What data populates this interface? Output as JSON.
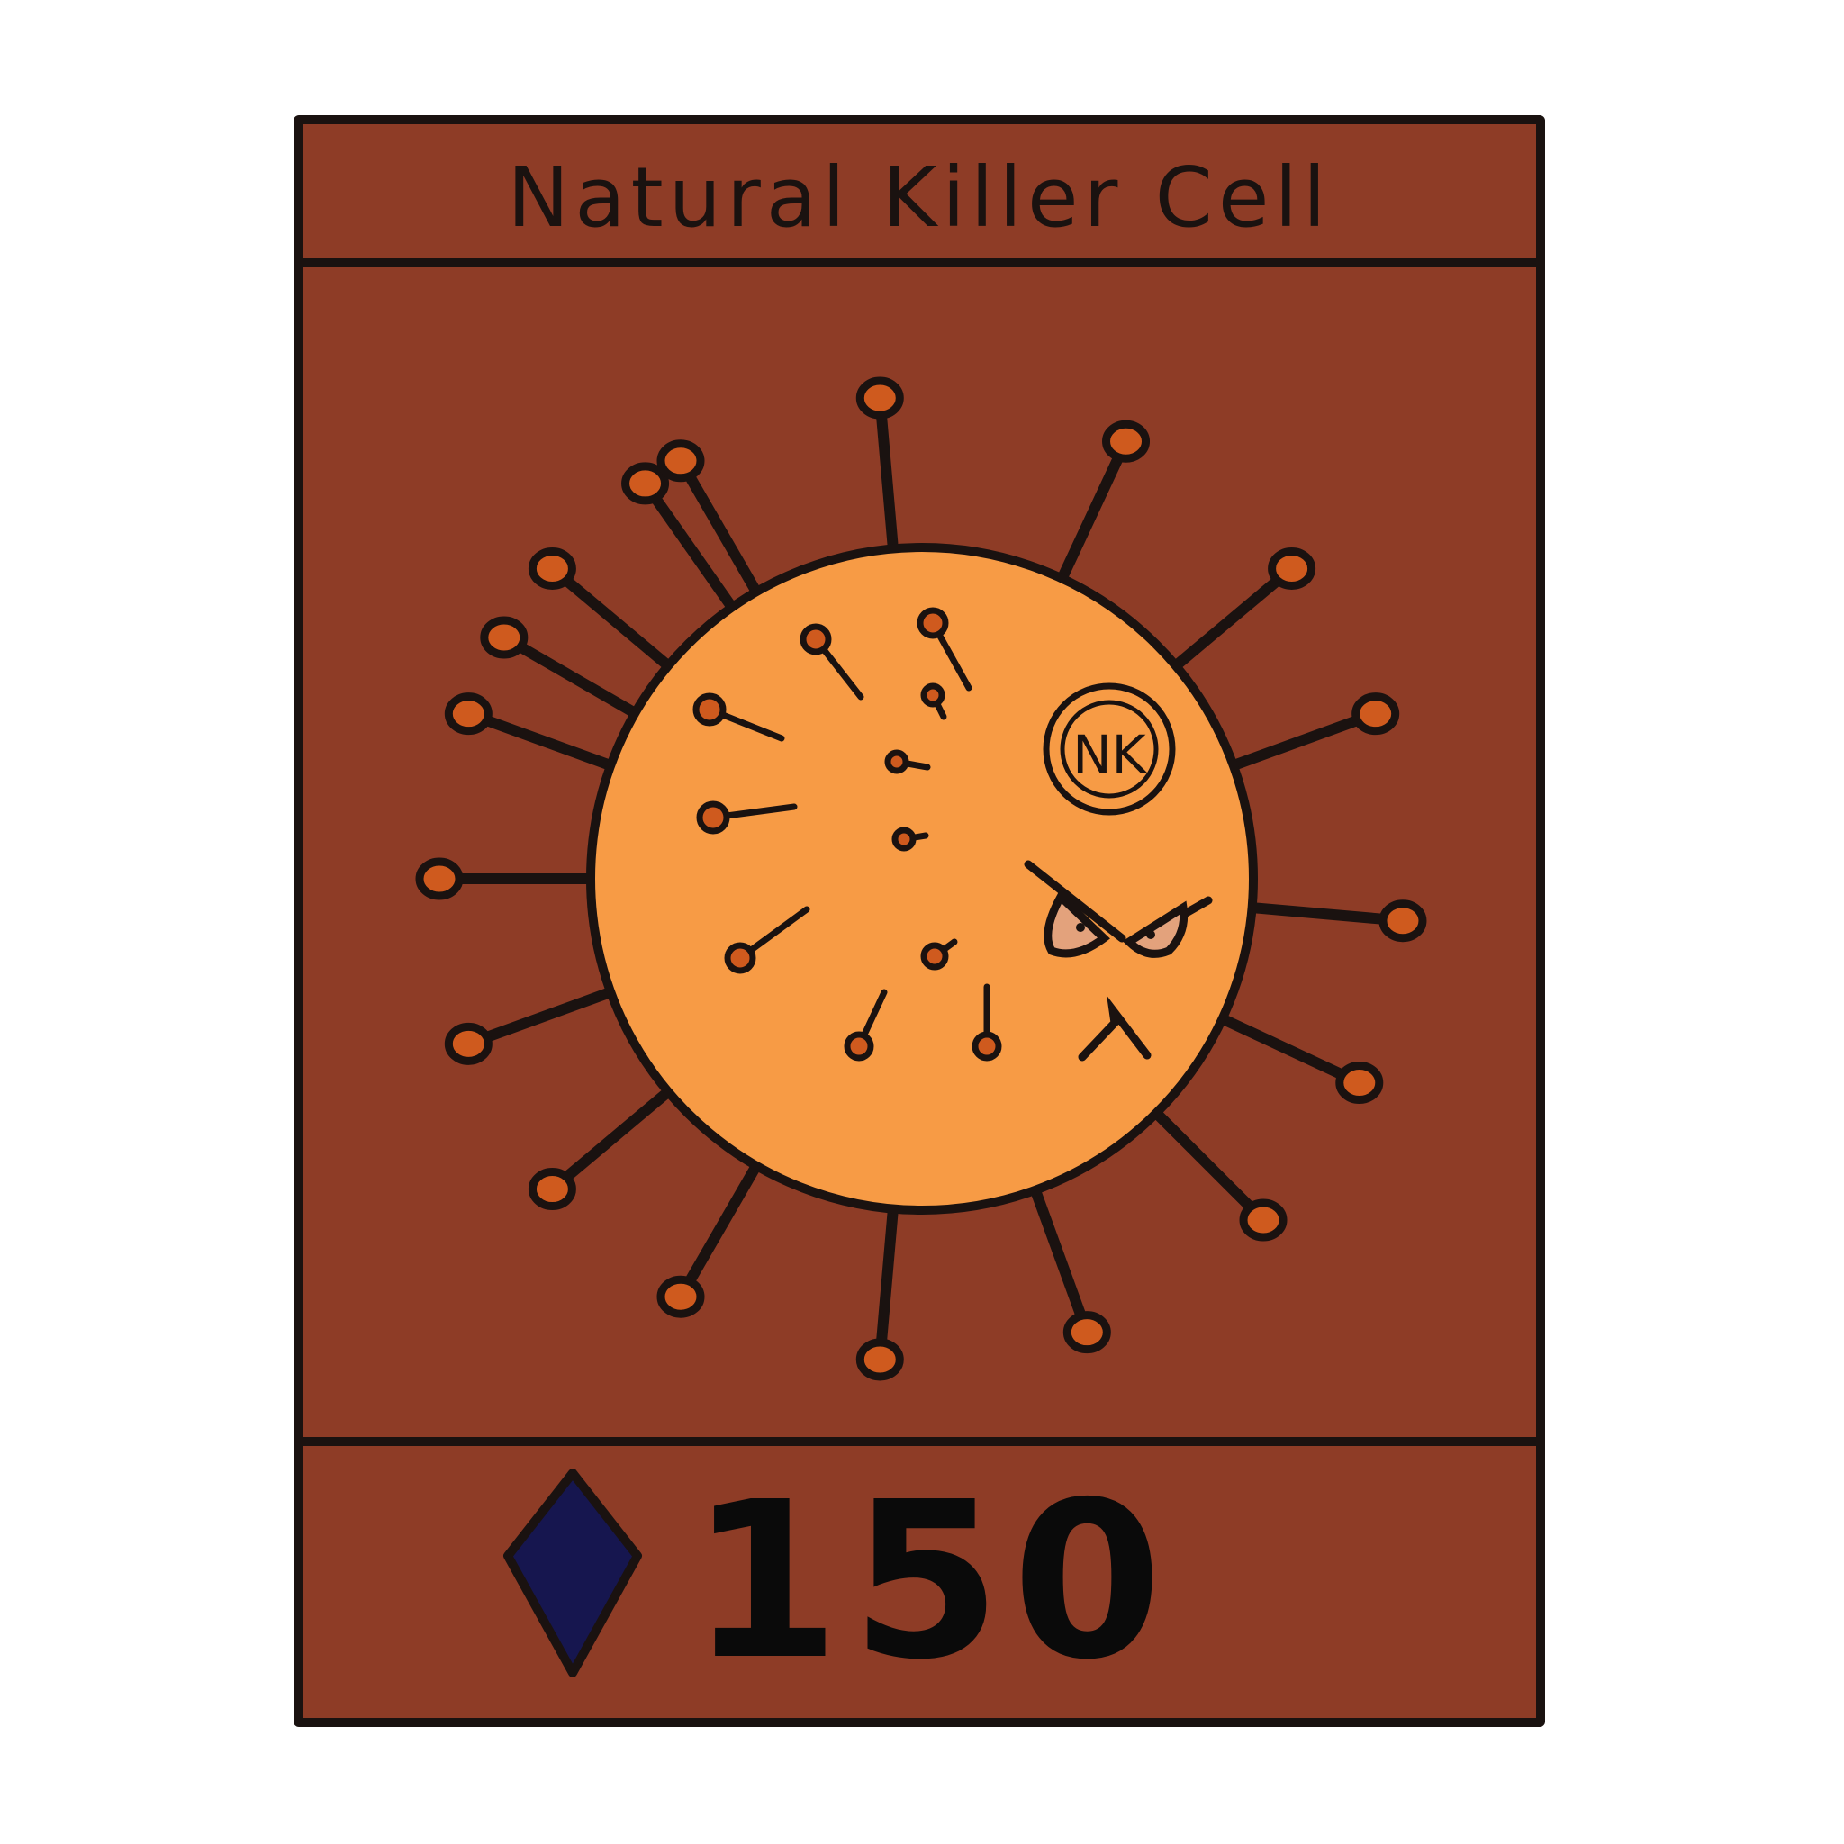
{
  "card": {
    "title": "Natural Killer Cell",
    "cell_badge": "NK",
    "cost": "150",
    "cost_icon": "gem-diamond-icon"
  },
  "colors": {
    "card_background": "#8e3c26",
    "outline": "#1a1210",
    "cell_body": "#f79b45",
    "receptor_knob": "#cf5a1e",
    "eye_fill": "#e3a27c",
    "gem_fill": "#16164f"
  }
}
